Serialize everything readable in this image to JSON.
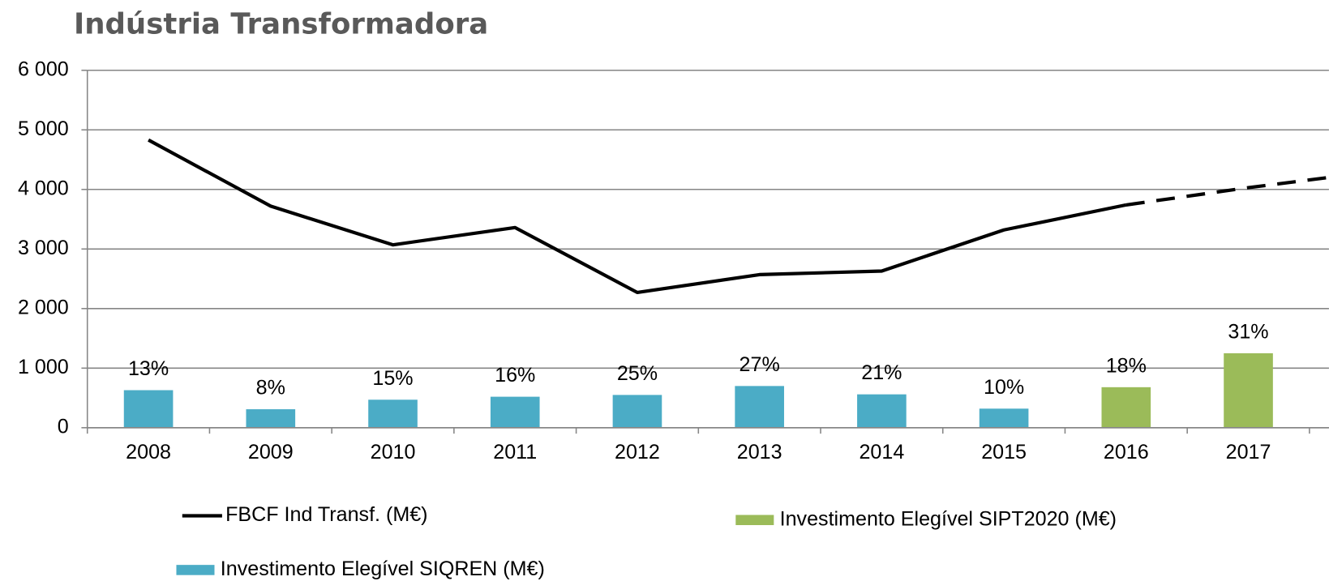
{
  "chart_data": {
    "type": "bar-line",
    "title": "Indústria Transformadora",
    "categories": [
      "2008",
      "2009",
      "2010",
      "2011",
      "2012",
      "2013",
      "2014",
      "2015",
      "2016",
      "2017",
      null
    ],
    "series": [
      {
        "name": "FBCF Ind Transf. (M€)",
        "kind": "line",
        "color": "#000000",
        "dashed_from": 8,
        "values": [
          4830,
          3720,
          3070,
          3360,
          2270,
          2570,
          2630,
          3320,
          3740,
          4030,
          4290
        ]
      },
      {
        "name": "Investimento Elegível SIPT2020 (M€)",
        "kind": "bar",
        "color": "#9bbb59",
        "values": [
          null,
          null,
          null,
          null,
          null,
          null,
          null,
          null,
          680,
          1250,
          null
        ]
      },
      {
        "name": "Investimento Elegível SIQREN (M€)",
        "kind": "bar",
        "color": "#4bacc6",
        "values": [
          630,
          310,
          470,
          520,
          550,
          700,
          560,
          320,
          null,
          null,
          null
        ]
      }
    ],
    "bar_labels": {
      "values": [
        13,
        8,
        15,
        16,
        25,
        27,
        21,
        10,
        18,
        31,
        null
      ],
      "value_labels": [
        "13%",
        "8%",
        "15%",
        "16%",
        "25%",
        "27%",
        "21%",
        "10%",
        "18%",
        "31%",
        null
      ]
    },
    "ylim": [
      0,
      6000
    ],
    "yticks": [
      0,
      {
        "value": 1000,
        "label": "1 000"
      },
      {
        "value": 2000,
        "label": "2 000"
      },
      {
        "value": 3000,
        "label": "3 000"
      },
      {
        "value": 4000,
        "label": "4 000"
      },
      {
        "value": 5000,
        "label": "5 000"
      },
      {
        "value": 6000,
        "label": "6 000"
      }
    ],
    "grid": true
  }
}
